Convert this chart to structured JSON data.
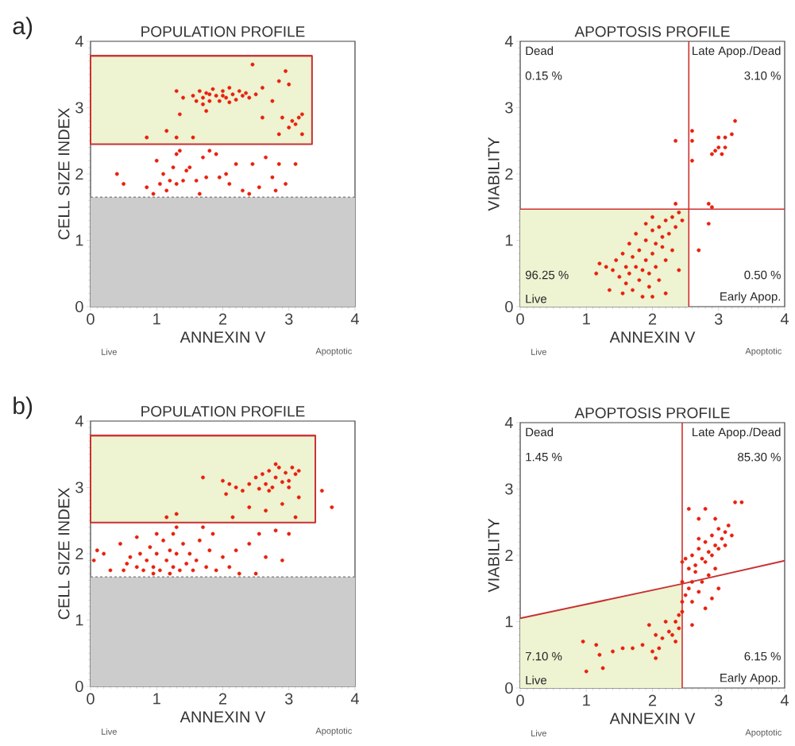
{
  "chart_data": [
    {
      "type": "scatter",
      "title": "POPULATION PROFILE",
      "xlabel": "ANNEXIN V",
      "ylabel": "CELL SIZE INDEX",
      "annotations": [
        "a)",
        "Live",
        "Apoptotic"
      ],
      "xlim": [
        0,
        4
      ],
      "ylim": [
        0,
        4
      ],
      "xticks": [
        0,
        1,
        2,
        3,
        4
      ],
      "yticks": [
        0,
        1,
        2,
        3,
        4
      ],
      "bands": [
        {
          "axis": "y",
          "from": 0,
          "to": 1.65,
          "color": "#cccccc"
        }
      ],
      "ref_lines": [
        {
          "axis": "y",
          "value": 1.65,
          "color": "#888888",
          "line_style": "dashed"
        }
      ],
      "series": [
        {
          "type": "line",
          "color": "#c83232",
          "x": [
            0,
            3.35
          ],
          "values": [
            3.78,
            3.78
          ],
          "lower": [
            2.45,
            2.45
          ],
          "upper": [
            3.78,
            3.78
          ]
        },
        {
          "color": "#e8200c",
          "x": [
            1.55,
            1.6,
            1.65,
            1.7,
            1.75,
            1.8,
            1.85,
            1.9,
            1.95,
            2.0,
            2.05,
            2.1,
            2.15,
            2.2,
            2.25,
            2.3,
            2.35,
            2.4,
            1.8,
            2.0,
            1.7,
            2.1,
            1.3,
            1.4,
            2.6,
            2.5,
            2.45,
            2.95,
            3.0,
            2.85,
            3.05,
            3.1,
            3.15,
            3.0,
            3.2,
            2.9,
            2.75,
            2.6,
            3.2,
            2.85,
            1.55,
            1.3,
            0.85,
            1.15,
            1.35,
            1.75,
            1.0,
            1.1,
            1.2,
            1.3,
            1.4,
            1.45,
            1.3,
            1.35,
            1.5,
            1.6,
            1.7,
            1.8,
            1.9,
            1.95,
            2.05,
            2.1,
            2.2,
            2.3,
            2.45,
            2.55,
            2.75,
            2.85,
            2.95,
            3.1,
            0.4,
            0.5,
            0.85,
            0.95,
            1.15,
            1.65,
            2.4,
            2.8,
            2.65,
            1.75,
            1.05,
            1.25
          ],
          "values": [
            3.18,
            3.1,
            3.25,
            3.15,
            3.22,
            3.1,
            3.28,
            3.18,
            3.1,
            3.25,
            3.15,
            3.3,
            3.2,
            3.12,
            3.25,
            3.18,
            3.22,
            3.15,
            3.2,
            3.18,
            3.05,
            3.08,
            3.25,
            3.15,
            3.3,
            3.2,
            3.65,
            3.55,
            3.35,
            3.4,
            2.8,
            2.75,
            2.85,
            2.7,
            2.9,
            2.85,
            3.1,
            2.85,
            2.6,
            2.6,
            2.55,
            2.55,
            2.55,
            2.65,
            2.9,
            2.95,
            2.2,
            2.0,
            1.9,
            1.85,
            1.9,
            2.05,
            2.3,
            2.35,
            2.1,
            1.9,
            2.25,
            2.35,
            2.3,
            1.95,
            2.0,
            1.85,
            2.15,
            1.75,
            2.15,
            1.8,
            1.95,
            2.15,
            1.85,
            2.15,
            2.0,
            1.85,
            1.8,
            1.7,
            1.75,
            1.7,
            1.7,
            1.75,
            2.25,
            1.95,
            1.85,
            2.1
          ]
        }
      ]
    },
    {
      "type": "scatter",
      "title": "APOPTOSIS PROFILE",
      "xlabel": "ANNEXIN V",
      "ylabel": "VIABILITY",
      "annotations": [
        "Dead",
        "0.15 %",
        "Late Apop./Dead",
        "3.10 %",
        "96.25 %",
        "Live",
        "0.50 %",
        "Early Apop.",
        "Live",
        "Apoptotic"
      ],
      "xlim": [
        0,
        4
      ],
      "ylim": [
        0,
        4
      ],
      "xticks": [
        0,
        1,
        2,
        3,
        4
      ],
      "yticks": [
        0,
        1,
        2,
        3,
        4
      ],
      "ref_lines": [
        {
          "axis": "x",
          "value": 2.55,
          "color": "#d03030"
        },
        {
          "axis": "y",
          "value": 1.47,
          "color": "#d03030"
        }
      ],
      "series": [
        {
          "type": "area",
          "color": "#eef3d2",
          "x": [
            0,
            2.55
          ],
          "values": [
            1.47,
            1.47
          ]
        },
        {
          "color": "#e8200c",
          "x": [
            1.4,
            1.45,
            1.5,
            1.55,
            1.6,
            1.6,
            1.65,
            1.7,
            1.7,
            1.75,
            1.8,
            1.8,
            1.85,
            1.85,
            1.9,
            1.9,
            1.95,
            1.95,
            2.0,
            2.0,
            2.05,
            2.05,
            2.1,
            2.1,
            2.15,
            2.15,
            2.2,
            2.2,
            2.25,
            2.3,
            2.35,
            2.4,
            2.3,
            2.4,
            1.3,
            1.2,
            1.15,
            1.35,
            1.55,
            2.0,
            2.2,
            2.45,
            2.35,
            1.65,
            1.75,
            1.9,
            2.0,
            2.95,
            3.0,
            3.05,
            2.9,
            3.1,
            3.2,
            3.25,
            3.1,
            3.0,
            2.6,
            2.6,
            2.35,
            2.85,
            2.9,
            2.85,
            2.7,
            2.6
          ],
          "values": [
            0.55,
            0.7,
            0.45,
            0.8,
            0.6,
            0.35,
            0.5,
            0.75,
            0.25,
            0.6,
            0.4,
            0.85,
            0.55,
            0.15,
            0.7,
            1.0,
            0.5,
            0.3,
            0.8,
            1.15,
            0.6,
            0.95,
            1.2,
            0.4,
            0.9,
            1.05,
            1.3,
            0.7,
            1.1,
            1.35,
            1.2,
            1.42,
            0.85,
            0.55,
            0.6,
            0.65,
            0.5,
            0.25,
            0.2,
            0.15,
            0.2,
            1.3,
            1.55,
            0.95,
            1.1,
            1.25,
            1.35,
            2.35,
            2.4,
            2.3,
            2.3,
            2.55,
            2.6,
            2.8,
            2.4,
            2.55,
            2.5,
            2.2,
            2.5,
            1.55,
            1.5,
            1.25,
            0.85,
            2.65
          ]
        }
      ]
    },
    {
      "type": "scatter",
      "title": "POPULATION PROFILE",
      "xlabel": "ANNEXIN V",
      "ylabel": "CELL SIZE INDEX",
      "annotations": [
        "b)",
        "Live",
        "Apoptotic"
      ],
      "xlim": [
        0,
        4
      ],
      "ylim": [
        0,
        4
      ],
      "xticks": [
        0,
        1,
        2,
        3,
        4
      ],
      "yticks": [
        0,
        1,
        2,
        3,
        4
      ],
      "bands": [
        {
          "axis": "y",
          "from": 0,
          "to": 1.65,
          "color": "#cccccc"
        }
      ],
      "ref_lines": [
        {
          "axis": "y",
          "value": 1.65,
          "color": "#888888",
          "line_style": "dashed"
        }
      ],
      "series": [
        {
          "type": "line",
          "color": "#c83232",
          "x": [
            0,
            3.4
          ],
          "values": [
            3.78,
            3.78
          ],
          "lower": [
            2.47,
            2.47
          ],
          "upper": [
            3.78,
            3.78
          ]
        },
        {
          "color": "#e8200c",
          "x": [
            2.4,
            2.5,
            2.55,
            2.6,
            2.65,
            2.7,
            2.75,
            2.8,
            2.85,
            2.9,
            2.95,
            3.0,
            3.05,
            3.1,
            3.15,
            2.8,
            3.0,
            2.7,
            2.2,
            2.1,
            2.0,
            1.7,
            2.05,
            2.3,
            2.4,
            2.65,
            2.9,
            3.15,
            3.1,
            3.5,
            3.65,
            2.15,
            1.15,
            1.3,
            0.5,
            0.55,
            0.6,
            0.7,
            0.75,
            0.8,
            0.85,
            0.9,
            0.95,
            1.0,
            1.05,
            1.1,
            1.15,
            1.2,
            1.25,
            1.25,
            1.3,
            1.35,
            1.4,
            1.45,
            1.5,
            1.55,
            1.6,
            1.0,
            1.3,
            1.65,
            1.75,
            1.8,
            1.85,
            1.9,
            2.0,
            2.1,
            2.2,
            2.25,
            1.7,
            0.3,
            0.2,
            0.1,
            0.05,
            0.45,
            0.7,
            2.4,
            2.55,
            2.65,
            2.8,
            2.9,
            3.0,
            2.5,
            1.2,
            0.95
          ],
          "values": [
            3.05,
            3.15,
            2.98,
            3.2,
            3.05,
            3.25,
            3.0,
            3.15,
            3.3,
            3.08,
            3.22,
            3.1,
            3.3,
            3.2,
            3.25,
            3.35,
            3.0,
            2.95,
            3.0,
            3.05,
            3.1,
            3.15,
            2.9,
            2.95,
            2.7,
            2.65,
            2.75,
            2.85,
            2.55,
            2.95,
            2.7,
            2.55,
            2.55,
            2.6,
            1.75,
            1.85,
            1.95,
            1.8,
            2.0,
            1.75,
            1.9,
            2.1,
            1.8,
            2.0,
            1.75,
            2.2,
            1.9,
            2.05,
            1.8,
            2.3,
            2.0,
            1.75,
            2.15,
            1.85,
            2.0,
            1.75,
            1.9,
            2.3,
            2.4,
            2.2,
            1.8,
            2.05,
            2.3,
            1.75,
            1.95,
            1.8,
            2.05,
            1.7,
            2.4,
            1.75,
            2.0,
            2.05,
            1.9,
            2.15,
            2.25,
            2.15,
            2.3,
            1.95,
            2.35,
            1.9,
            2.3,
            1.7,
            1.7,
            1.7
          ]
        }
      ]
    },
    {
      "type": "scatter",
      "title": "APOPTOSIS PROFILE",
      "xlabel": "ANNEXIN V",
      "ylabel": "VIABILITY",
      "annotations": [
        "Dead",
        "1.45 %",
        "Late Apop./Dead",
        "85.30 %",
        "7.10 %",
        "Live",
        "6.15 %",
        "Early Apop.",
        "Live",
        "Apoptotic"
      ],
      "xlim": [
        0,
        4
      ],
      "ylim": [
        0,
        4
      ],
      "xticks": [
        0,
        1,
        2,
        3,
        4
      ],
      "yticks": [
        0,
        1,
        2,
        3,
        4
      ],
      "ref_lines": [
        {
          "axis": "x",
          "value": 2.45,
          "color": "#d03030"
        }
      ],
      "series": [
        {
          "type": "area",
          "color": "#eef3d2",
          "x": [
            0,
            2.45
          ],
          "values": [
            1.05,
            1.57
          ]
        },
        {
          "type": "line",
          "color": "#c83232",
          "x": [
            0,
            2.45,
            4
          ],
          "values": [
            1.05,
            1.57,
            1.92
          ]
        },
        {
          "color": "#e8200c",
          "x": [
            2.45,
            2.5,
            2.55,
            2.6,
            2.65,
            2.7,
            2.75,
            2.8,
            2.85,
            2.9,
            2.95,
            3.0,
            3.05,
            3.1,
            3.15,
            2.8,
            2.9,
            3.0,
            2.7,
            2.65,
            2.6,
            2.55,
            2.5,
            2.6,
            2.7,
            2.75,
            2.85,
            2.95,
            2.8,
            2.9,
            3.0,
            2.45,
            2.45,
            2.45,
            2.4,
            2.35,
            2.4,
            2.3,
            2.35,
            2.25,
            2.2,
            2.15,
            2.1,
            2.05,
            2.0,
            2.05,
            1.95,
            1.85,
            1.7,
            1.55,
            1.4,
            1.2,
            1.15,
            1.25,
            1.0,
            0.95,
            2.6,
            2.55,
            2.8,
            3.25,
            3.35,
            2.7,
            2.95,
            3.1,
            3.2
          ],
          "values": [
            1.9,
            1.95,
            1.8,
            2.0,
            1.85,
            2.1,
            1.95,
            2.2,
            2.05,
            2.3,
            2.15,
            2.4,
            2.25,
            2.35,
            2.45,
            1.9,
            2.0,
            2.1,
            2.25,
            1.75,
            1.6,
            1.5,
            1.4,
            1.3,
            1.45,
            1.6,
            1.7,
            1.8,
            1.2,
            1.35,
            1.5,
            1.6,
            1.3,
            1.15,
            1.1,
            1.0,
            0.9,
            0.8,
            0.7,
            0.85,
            1.0,
            0.75,
            0.6,
            0.45,
            0.55,
            0.8,
            0.95,
            0.65,
            0.6,
            0.6,
            0.55,
            0.5,
            0.65,
            0.3,
            0.25,
            0.7,
            0.95,
            2.7,
            2.7,
            2.8,
            2.8,
            2.55,
            2.55,
            2.15,
            2.3
          ]
        }
      ]
    }
  ]
}
